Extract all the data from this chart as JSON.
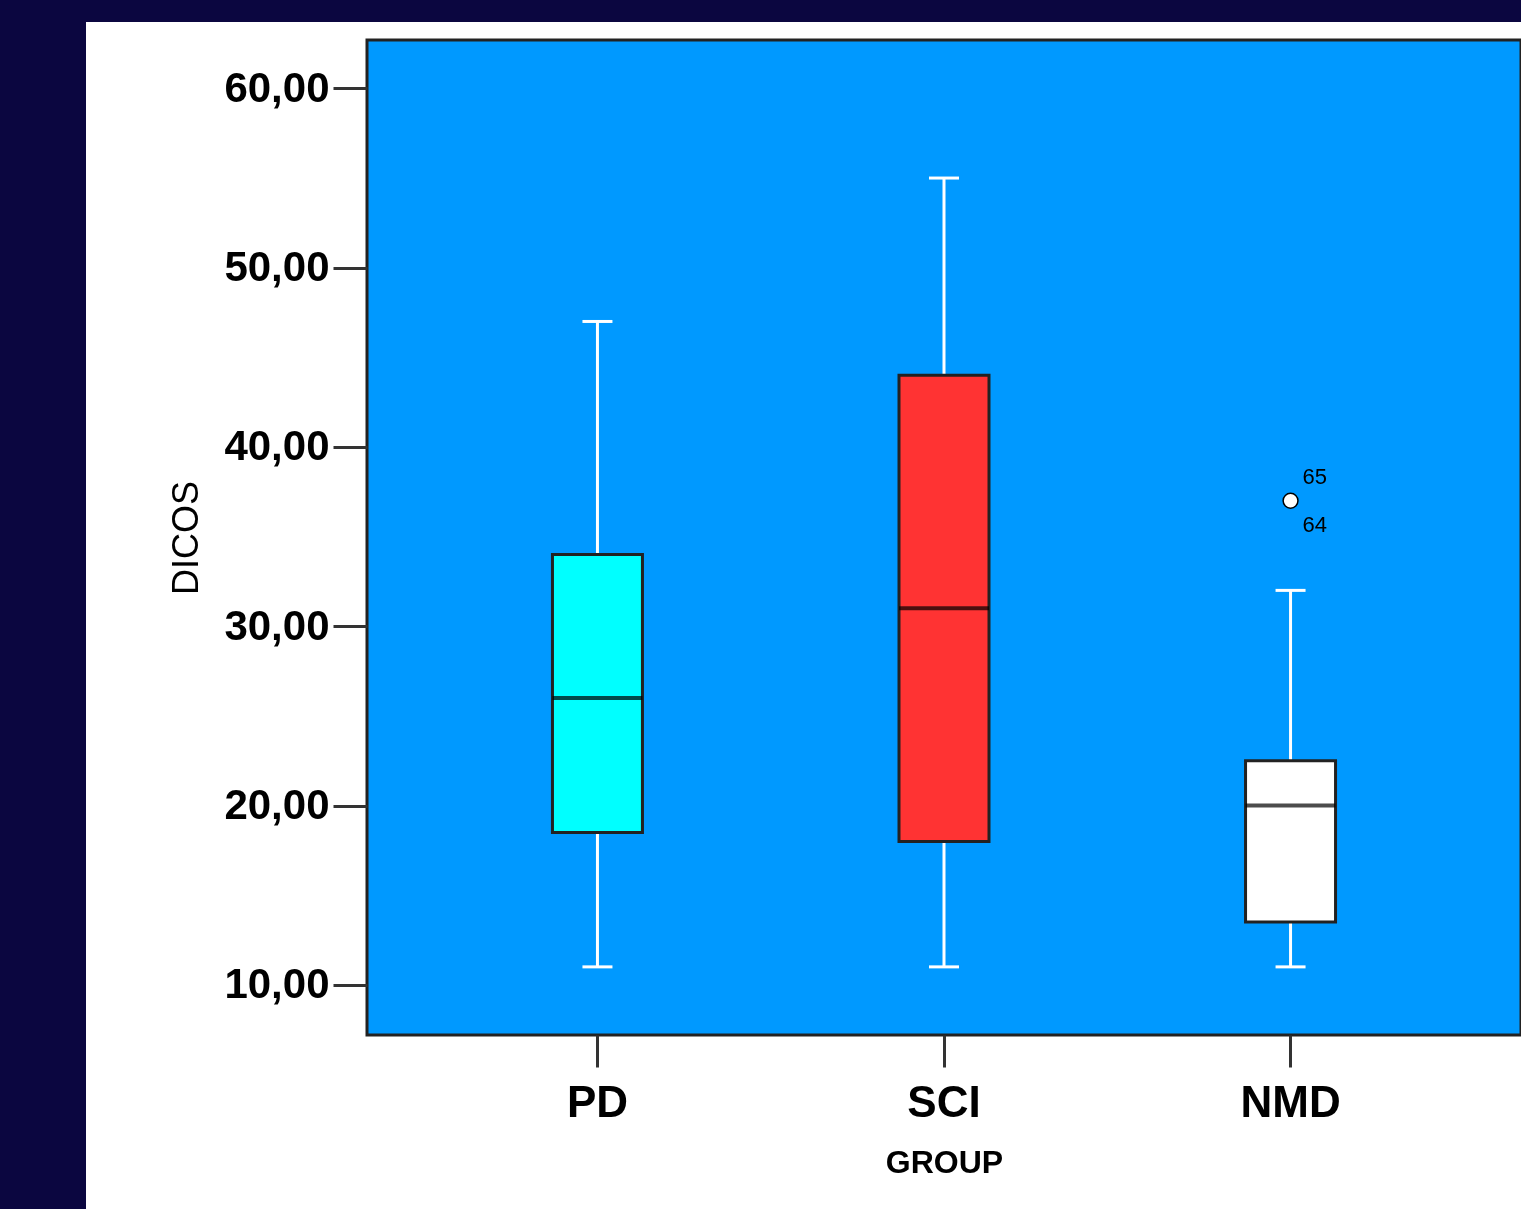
{
  "chart_data": {
    "type": "box",
    "xlabel": "GROUP",
    "ylabel": "DICOS",
    "categories": [
      "PD",
      "SCI",
      "NMD"
    ],
    "colors": [
      "#00ffff",
      "#ff3333",
      "#ffffff"
    ],
    "boxes": [
      {
        "low": 11,
        "q1": 18.5,
        "median": 26,
        "q3": 34,
        "high": 47
      },
      {
        "low": 11,
        "q1": 18,
        "median": 31,
        "q3": 44,
        "high": 55
      },
      {
        "low": 11,
        "q1": 13.5,
        "median": 20,
        "q3": 22.5,
        "high": 32,
        "outliers": [
          37
        ]
      }
    ],
    "ylim": [
      7.2,
      62.7
    ],
    "yticks": [
      {
        "value": 10,
        "label": "10,00"
      },
      {
        "value": 20,
        "label": "20,00"
      },
      {
        "value": 30,
        "label": "30,00"
      },
      {
        "value": 40,
        "label": "40,00"
      },
      {
        "value": 50,
        "label": "50,00"
      },
      {
        "value": 60,
        "label": "60,00"
      }
    ],
    "annotations": [
      "65",
      "64"
    ],
    "grid": false
  }
}
